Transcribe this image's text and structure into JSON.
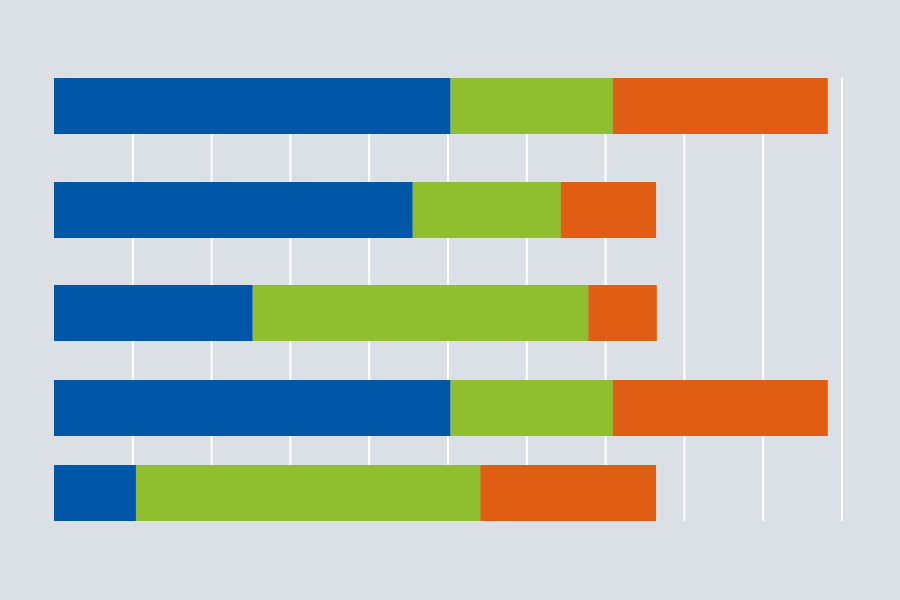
{
  "background": "#dbe0e6",
  "chart_data": {
    "type": "bar",
    "orientation": "horizontal",
    "stacked": true,
    "grid": true,
    "grid_color": "#ffffff",
    "xlim": [
      0,
      10
    ],
    "categories": [
      "",
      "",
      "",
      "",
      ""
    ],
    "series": [
      {
        "color": "#0057a8",
        "values": [
          5.03,
          4.55,
          2.52,
          5.03,
          1.04
        ]
      },
      {
        "color": "#8fbf2e",
        "values": [
          2.06,
          1.88,
          4.26,
          2.06,
          4.37
        ]
      },
      {
        "color": "#e05e14",
        "values": [
          2.73,
          1.21,
          0.87,
          2.73,
          2.23
        ]
      }
    ]
  }
}
